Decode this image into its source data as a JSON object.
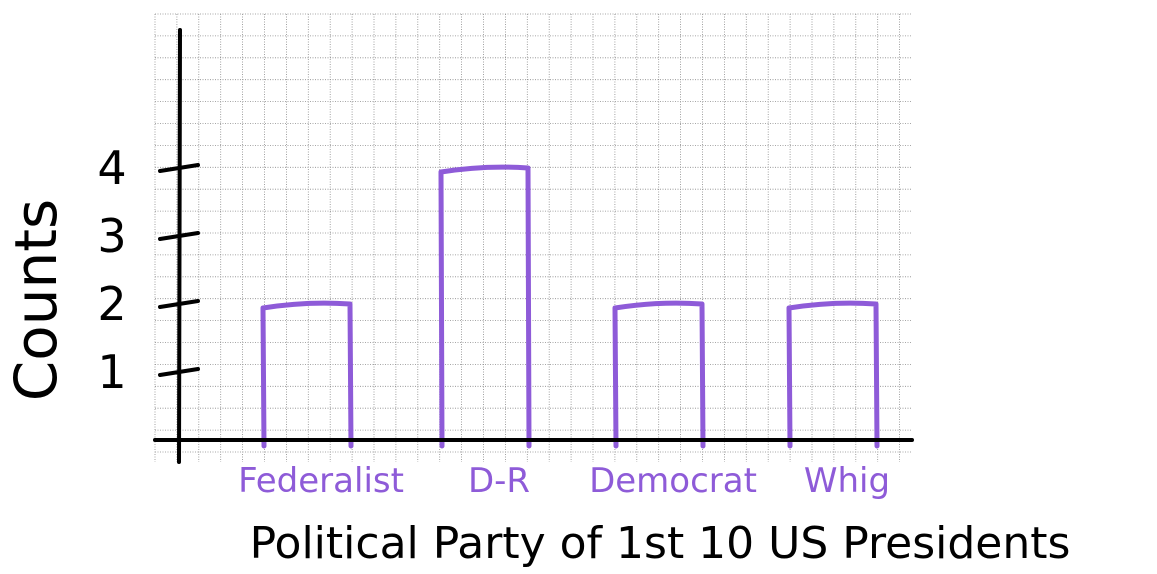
{
  "chart_data": {
    "type": "bar",
    "categories": [
      "Federalist",
      "D-R",
      "Democrat",
      "Whig"
    ],
    "values": [
      2,
      4,
      2,
      2
    ],
    "ylabel": "Counts",
    "xlabel": "Political Party of 1st 10 US Presidents",
    "yticks": [
      "1",
      "2",
      "3",
      "4"
    ],
    "ylim": [
      0,
      8
    ],
    "grid": true,
    "colors": {
      "bar": "#8e5bd8",
      "category_label": "#8e5bd8",
      "axis": "#000000",
      "grid": "#8a8a8a"
    }
  }
}
